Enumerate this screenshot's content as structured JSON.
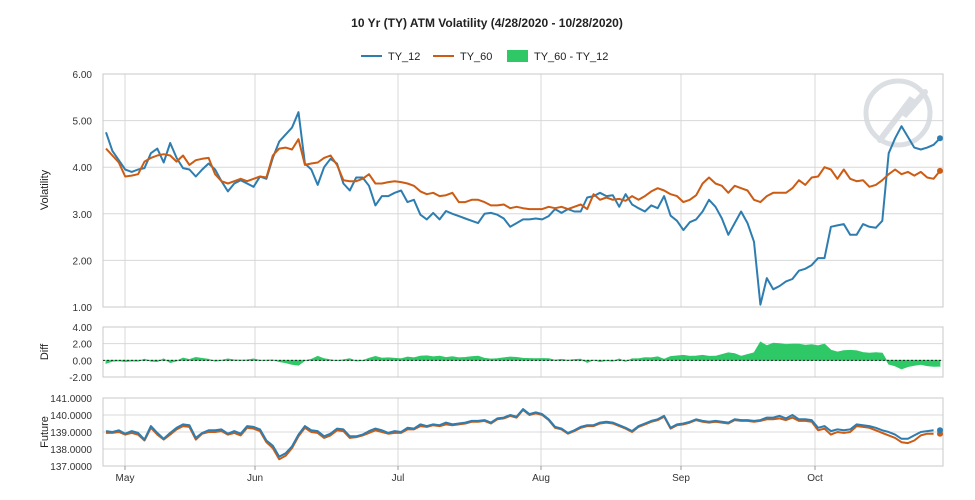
{
  "chart_data": {
    "type": "line",
    "title": "10 Yr (TY) ATM Volatility (4/28/2020 - 10/28/2020)",
    "x_tick_labels": [
      "May",
      "Jun",
      "Jul",
      "Aug",
      "Sep",
      "Oct"
    ],
    "x_range": [
      "4/28/2020",
      "10/28/2020"
    ],
    "legend": {
      "position": "top-center",
      "entries": [
        "TY_12",
        "TY_60",
        "TY_60 - TY_12"
      ]
    },
    "colors": {
      "TY_12": "#2e7db0",
      "TY_60": "#cc5c14",
      "diff": "#2ec866",
      "grid": "#d8d8d8",
      "panel_border": "#c8c8c8"
    },
    "grid": true,
    "panels": [
      {
        "name": "volatility",
        "ylabel": "Volatility",
        "ylim": [
          1,
          6
        ],
        "y_ticks": [
          "1.00",
          "2.00",
          "3.00",
          "4.00",
          "5.00",
          "6.00"
        ],
        "series": [
          {
            "name": "TY_12",
            "values": [
              4.75,
              4.35,
              4.15,
              3.95,
              3.9,
              3.95,
              3.98,
              4.3,
              4.4,
              4.1,
              4.52,
              4.2,
              3.98,
              3.95,
              3.8,
              3.95,
              4.08,
              3.95,
              3.7,
              3.48,
              3.65,
              3.72,
              3.65,
              3.58,
              3.8,
              3.75,
              4.2,
              4.55,
              4.7,
              4.85,
              5.18,
              4.08,
              3.95,
              3.62,
              4.0,
              4.18,
              4.08,
              3.65,
              3.5,
              3.78,
              3.78,
              3.6,
              3.18,
              3.38,
              3.38,
              3.45,
              3.5,
              3.25,
              3.3,
              2.98,
              2.88,
              3.02,
              2.88,
              3.06,
              3.0,
              2.95,
              2.9,
              2.85,
              2.8,
              3.0,
              3.02,
              2.98,
              2.9,
              2.72,
              2.8,
              2.88,
              2.88,
              2.9,
              2.88,
              2.95,
              3.1,
              3.02,
              3.1,
              3.05,
              3.05,
              3.35,
              3.38,
              3.45,
              3.38,
              3.4,
              3.15,
              3.42,
              3.2,
              3.12,
              3.05,
              3.18,
              3.12,
              3.38,
              2.96,
              2.85,
              2.65,
              2.82,
              2.88,
              3.05,
              3.3,
              3.15,
              2.9,
              2.55,
              2.8,
              3.05,
              2.8,
              2.4,
              1.05,
              1.62,
              1.38,
              1.45,
              1.55,
              1.6,
              1.78,
              1.82,
              1.9,
              2.05,
              2.05,
              2.72,
              2.75,
              2.78,
              2.55,
              2.55,
              2.78,
              2.72,
              2.7,
              2.85,
              4.3,
              4.62,
              4.88,
              4.65,
              4.42,
              4.38,
              4.42,
              4.48,
              4.62
            ]
          },
          {
            "name": "TY_60",
            "values": [
              4.4,
              4.25,
              4.1,
              3.8,
              3.82,
              3.85,
              4.12,
              4.2,
              4.25,
              4.28,
              4.25,
              4.12,
              4.25,
              4.05,
              4.15,
              4.18,
              4.2,
              3.85,
              3.7,
              3.65,
              3.7,
              3.75,
              3.7,
              3.75,
              3.8,
              3.78,
              4.25,
              4.4,
              4.42,
              4.38,
              4.6,
              4.05,
              4.08,
              4.1,
              4.2,
              4.25,
              4.05,
              3.72,
              3.7,
              3.7,
              3.75,
              3.85,
              3.65,
              3.65,
              3.68,
              3.7,
              3.68,
              3.65,
              3.6,
              3.48,
              3.42,
              3.45,
              3.38,
              3.4,
              3.45,
              3.25,
              3.25,
              3.3,
              3.3,
              3.25,
              3.18,
              3.18,
              3.2,
              3.12,
              3.15,
              3.12,
              3.1,
              3.1,
              3.1,
              3.15,
              3.12,
              3.15,
              3.1,
              3.15,
              3.2,
              3.1,
              3.42,
              3.3,
              3.35,
              3.3,
              3.32,
              3.28,
              3.38,
              3.3,
              3.38,
              3.48,
              3.55,
              3.5,
              3.42,
              3.38,
              3.25,
              3.3,
              3.4,
              3.65,
              3.78,
              3.65,
              3.6,
              3.45,
              3.6,
              3.55,
              3.5,
              3.3,
              3.25,
              3.38,
              3.45,
              3.45,
              3.45,
              3.55,
              3.72,
              3.62,
              3.78,
              3.8,
              4.0,
              3.95,
              3.75,
              3.95,
              3.75,
              3.7,
              3.72,
              3.58,
              3.62,
              3.72,
              3.85,
              3.95,
              3.85,
              3.9,
              3.82,
              3.9,
              3.78,
              3.75,
              3.92
            ]
          }
        ]
      },
      {
        "name": "diff",
        "ylabel": "Diff",
        "ylim": [
          -2,
          4
        ],
        "y_ticks": [
          "-2.00",
          "0.00",
          "2.00",
          "4.00"
        ],
        "y_tick_values": [
          -2,
          0,
          2,
          4
        ],
        "series": [
          {
            "name": "TY_60 - TY_12",
            "type": "area",
            "derived": "TY_60 minus TY_12"
          }
        ]
      },
      {
        "name": "future",
        "ylabel": "Future",
        "ylim": [
          137.0,
          141.0
        ],
        "y_ticks": [
          "137.0000",
          "138.0000",
          "139.0000",
          "140.0000",
          "141.0000"
        ],
        "y_tick_values": [
          137,
          138,
          139,
          140,
          141
        ],
        "series": [
          {
            "name": "future_a",
            "color_key": "TY_12",
            "values": [
              139.05,
              139.0,
              139.1,
              138.9,
              139.05,
              138.95,
              138.55,
              139.35,
              138.95,
              138.6,
              138.95,
              139.25,
              139.45,
              139.4,
              138.65,
              138.95,
              139.1,
              139.1,
              139.15,
              138.9,
              139.05,
              138.9,
              139.35,
              139.3,
              139.15,
              138.5,
              138.2,
              137.55,
              137.75,
              138.15,
              138.85,
              139.35,
              139.1,
              139.05,
              138.75,
              138.9,
              139.2,
              139.15,
              138.75,
              138.75,
              138.85,
              139.05,
              139.2,
              139.1,
              138.95,
              139.05,
              139.0,
              139.25,
              139.2,
              139.45,
              139.35,
              139.45,
              139.4,
              139.55,
              139.45,
              139.5,
              139.55,
              139.65,
              139.65,
              139.7,
              139.55,
              139.8,
              139.85,
              140.0,
              139.9,
              140.35,
              140.05,
              140.15,
              140.05,
              139.75,
              139.3,
              139.2,
              138.95,
              139.1,
              139.3,
              139.4,
              139.4,
              139.55,
              139.6,
              139.55,
              139.4,
              139.25,
              139.05,
              139.35,
              139.5,
              139.65,
              139.75,
              139.95,
              139.25,
              139.45,
              139.5,
              139.6,
              139.75,
              139.65,
              139.6,
              139.65,
              139.6,
              139.55,
              139.75,
              139.7,
              139.7,
              139.65,
              139.7,
              139.85,
              139.85,
              139.95,
              139.8,
              140.0,
              139.75,
              139.75,
              139.7,
              139.25,
              139.35,
              139.05,
              139.15,
              139.1,
              139.15,
              139.45,
              139.4,
              139.35,
              139.25,
              139.1,
              139.0,
              138.85,
              138.6,
              138.6,
              138.8,
              139.0,
              139.05,
              139.1
            ]
          },
          {
            "name": "future_b",
            "color_key": "TY_60",
            "values": [
              138.95,
              138.95,
              139.0,
              138.85,
              138.95,
              138.85,
              138.5,
              139.25,
              138.85,
              138.55,
              138.85,
              139.15,
              139.35,
              139.3,
              138.55,
              138.9,
              139.0,
              139.0,
              139.05,
              138.85,
              138.95,
              138.8,
              139.25,
              139.2,
              139.05,
              138.4,
              138.05,
              137.4,
              137.6,
              138.05,
              138.75,
              139.25,
              139.0,
              138.95,
              138.65,
              138.8,
              139.1,
              139.05,
              138.65,
              138.7,
              138.8,
              138.95,
              139.1,
              139.0,
              138.9,
              138.95,
              138.95,
              139.15,
              139.15,
              139.35,
              139.3,
              139.4,
              139.35,
              139.45,
              139.4,
              139.45,
              139.5,
              139.6,
              139.6,
              139.65,
              139.5,
              139.75,
              139.8,
              139.95,
              139.85,
              140.3,
              140.0,
              140.1,
              140.0,
              139.7,
              139.25,
              139.15,
              138.9,
              139.05,
              139.25,
              139.35,
              139.35,
              139.5,
              139.55,
              139.5,
              139.35,
              139.2,
              139.0,
              139.3,
              139.45,
              139.6,
              139.7,
              139.9,
              139.2,
              139.4,
              139.45,
              139.55,
              139.7,
              139.6,
              139.55,
              139.6,
              139.55,
              139.5,
              139.7,
              139.65,
              139.65,
              139.6,
              139.65,
              139.75,
              139.75,
              139.8,
              139.7,
              139.85,
              139.65,
              139.65,
              139.6,
              139.1,
              139.2,
              138.85,
              139.0,
              138.95,
              139.0,
              139.35,
              139.3,
              139.25,
              139.1,
              138.95,
              138.8,
              138.65,
              138.4,
              138.35,
              138.5,
              138.8,
              138.9,
              138.9
            ]
          }
        ]
      }
    ]
  }
}
